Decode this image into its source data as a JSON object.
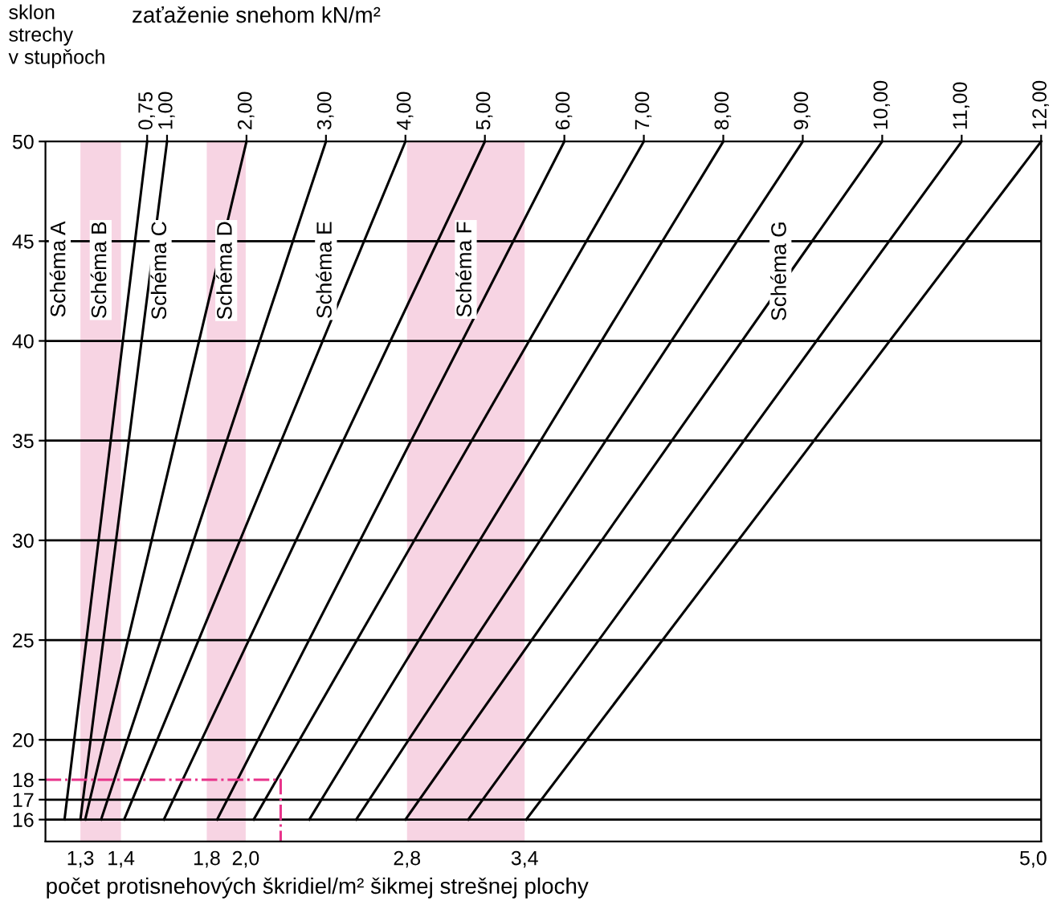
{
  "chart_data": {
    "type": "line",
    "xlabel": "zaťaženie snehom kN/m²",
    "ylabel": "sklon\nstrechy\nv stupňoch",
    "xlim": [
      -0.53,
      12.0
    ],
    "ylim": [
      14.9,
      50
    ],
    "xticks": [
      {
        "value": 0.75,
        "label": "0,75"
      },
      {
        "value": 1,
        "label": "1,00"
      },
      {
        "value": 2,
        "label": "2,00"
      },
      {
        "value": 3,
        "label": "3,00"
      },
      {
        "value": 4,
        "label": "4,00"
      },
      {
        "value": 5,
        "label": "5,00"
      },
      {
        "value": 6,
        "label": "6,00"
      },
      {
        "value": 7,
        "label": "7,00"
      },
      {
        "value": 8,
        "label": "8,00"
      },
      {
        "value": 9,
        "label": "9,00"
      },
      {
        "value": 10,
        "label": "10,00"
      },
      {
        "value": 11,
        "label": "11,00"
      },
      {
        "value": 12,
        "label": "12,00"
      }
    ],
    "yticks": [
      16,
      17,
      18,
      20,
      25,
      30,
      35,
      40,
      45,
      50
    ],
    "grid": false,
    "legend": false,
    "marker": "none",
    "line_style": "solid",
    "series": [
      {
        "color": "#000000",
        "x": [
          -0.29,
          0.75
        ],
        "values": [
          16,
          50
        ]
      },
      {
        "color": "#000000",
        "x": [
          -0.09,
          1
        ],
        "values": [
          16,
          50
        ]
      },
      {
        "color": "#000000",
        "x": [
          -0.03,
          2
        ],
        "values": [
          16,
          50
        ]
      },
      {
        "color": "#000000",
        "x": [
          0.17,
          3
        ],
        "values": [
          16,
          50
        ]
      },
      {
        "color": "#000000",
        "x": [
          0.46,
          4
        ],
        "values": [
          16,
          50
        ]
      },
      {
        "color": "#000000",
        "x": [
          0.96,
          5
        ],
        "values": [
          16,
          50
        ]
      },
      {
        "color": "#000000",
        "x": [
          1.63,
          6
        ],
        "values": [
          16,
          50
        ]
      },
      {
        "color": "#000000",
        "x": [
          2.09,
          7
        ],
        "values": [
          16,
          50
        ]
      },
      {
        "color": "#000000",
        "x": [
          2.79,
          8
        ],
        "values": [
          16,
          50
        ]
      },
      {
        "color": "#000000",
        "x": [
          3.38,
          9
        ],
        "values": [
          16,
          50
        ]
      },
      {
        "color": "#000000",
        "x": [
          4.0,
          10
        ],
        "values": [
          16,
          50
        ]
      },
      {
        "color": "#000000",
        "x": [
          4.79,
          11
        ],
        "values": [
          16,
          50
        ]
      },
      {
        "color": "#000000",
        "x": [
          5.52,
          12
        ],
        "values": [
          16,
          50
        ]
      },
      {
        "color": "#e8338a",
        "line_style": "dashed",
        "x": [
          -0.53,
          2.43,
          2.43
        ],
        "values": [
          18,
          18,
          14.9
        ]
      }
    ],
    "ref_lines": [
      {
        "axis": "y",
        "value": 16,
        "color": "#000000"
      },
      {
        "axis": "y",
        "value": 17,
        "color": "#000000"
      },
      {
        "axis": "y",
        "value": 20,
        "color": "#000000"
      },
      {
        "axis": "y",
        "value": 25,
        "color": "#000000"
      },
      {
        "axis": "y",
        "value": 30,
        "color": "#000000"
      },
      {
        "axis": "y",
        "value": 35,
        "color": "#000000"
      },
      {
        "axis": "y",
        "value": 40,
        "color": "#000000"
      },
      {
        "axis": "y",
        "value": 45,
        "color": "#000000"
      }
    ],
    "bands": [
      {
        "axis": "x",
        "from": -0.09,
        "to": 0.42,
        "color": "#f7d4e3"
      },
      {
        "axis": "x",
        "from": 1.5,
        "to": 1.99,
        "color": "#f7d4e3"
      },
      {
        "axis": "x",
        "from": 4.02,
        "to": 5.5,
        "color": "#f7d4e3"
      }
    ],
    "annotations": [
      {
        "text": "Schéma A",
        "x": -0.35,
        "y": 45
      },
      {
        "text": "Schéma B",
        "x": 0.165,
        "y": 45
      },
      {
        "text": "Schéma C",
        "x": 0.92,
        "y": 45
      },
      {
        "text": "Schéma D",
        "x": 1.745,
        "y": 45
      },
      {
        "text": "Schéma E",
        "x": 3.0,
        "y": 45
      },
      {
        "text": "Schéma F",
        "x": 4.76,
        "y": 45
      },
      {
        "text": "Schéma G",
        "x": 8.72,
        "y": 45
      },
      {
        "text": "1,3",
        "x": -0.09,
        "y": 14.9
      },
      {
        "text": "1,4",
        "x": 0.42,
        "y": 14.9
      },
      {
        "text": "1,8",
        "x": 1.5,
        "y": 14.9
      },
      {
        "text": "2,0",
        "x": 1.99,
        "y": 14.9
      },
      {
        "text": "2,8",
        "x": 4.02,
        "y": 14.9
      },
      {
        "text": "3,4",
        "x": 5.5,
        "y": 14.9
      },
      {
        "text": "5,0",
        "x": 11.9,
        "y": 16
      },
      "počet protisnehových škridiel/m² šikmej strešnej plochy"
    ]
  }
}
